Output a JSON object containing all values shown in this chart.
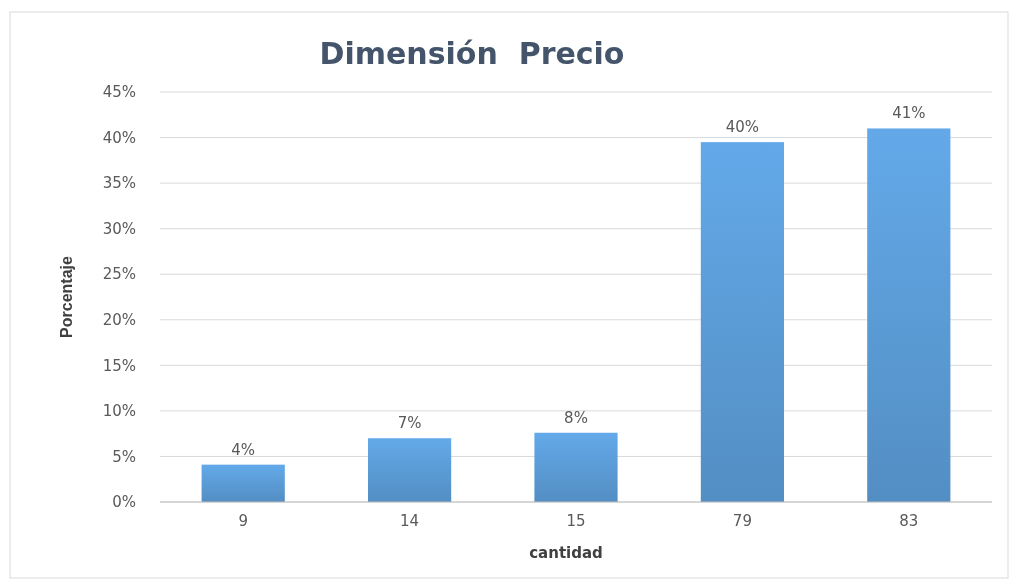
{
  "chart_data": {
    "type": "bar",
    "title": "Dimensión  Precio",
    "xlabel": "cantidad",
    "ylabel": "Porcentaje",
    "categories": [
      "9",
      "14",
      "15",
      "79",
      "83"
    ],
    "values": [
      4.1,
      7.0,
      7.6,
      39.5,
      41.0
    ],
    "value_labels": [
      "4%",
      "7%",
      "8%",
      "40%",
      "41%"
    ],
    "color": "#5b9bd5",
    "ylim": [
      0,
      45
    ],
    "yticks": [
      {
        "value": 0,
        "label": "0%"
      },
      {
        "value": 5,
        "label": "5%"
      },
      {
        "value": 10,
        "label": "10%"
      },
      {
        "value": 15,
        "label": "15%"
      },
      {
        "value": 20,
        "label": "20%"
      },
      {
        "value": 25,
        "label": "25%"
      },
      {
        "value": 30,
        "label": "30%"
      },
      {
        "value": 35,
        "label": "35%"
      },
      {
        "value": 40,
        "label": "40%"
      },
      {
        "value": 45,
        "label": "45%"
      }
    ],
    "grid": "y"
  }
}
